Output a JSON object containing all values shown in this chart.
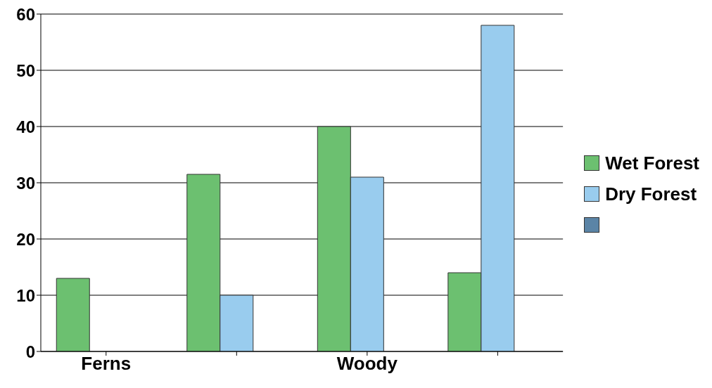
{
  "chart_data": {
    "type": "bar",
    "categories": [
      "Ferns",
      null,
      "Woody",
      null
    ],
    "series": [
      {
        "name": "Wet Forest",
        "color": "#6cc070",
        "values": [
          13,
          31.5,
          40,
          14
        ]
      },
      {
        "name": "Dry Forest",
        "color": "#99ccee",
        "values": [
          0,
          10,
          31,
          58
        ]
      },
      {
        "color": "#5b84a6",
        "values": [
          null,
          null,
          null,
          null
        ]
      }
    ],
    "ylim": [
      0,
      60
    ],
    "yticks": [
      0,
      10,
      20,
      30,
      40,
      50,
      60
    ],
    "grid": "y",
    "legend": "right"
  }
}
